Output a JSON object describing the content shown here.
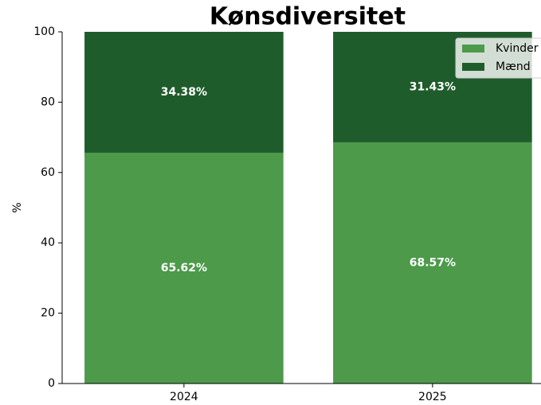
{
  "chart_data": {
    "type": "stacked_bar",
    "title": "Kønsdiversitet",
    "y_label": "%",
    "categories": [
      "2024",
      "2025"
    ],
    "series": [
      {
        "name": "Kvinder",
        "color": "#4c9a4a",
        "values": [
          65.62,
          68.57
        ],
        "value_labels": [
          "65.62%",
          "68.57%"
        ]
      },
      {
        "name": "Mænd",
        "color": "#1f5c2b",
        "values": [
          34.38,
          31.43
        ],
        "value_labels": [
          "34.38%",
          "31.43%"
        ]
      }
    ],
    "ylim": [
      0,
      100
    ],
    "yticks": [
      0,
      20,
      40,
      60,
      80,
      100
    ],
    "legend": "upper right"
  }
}
